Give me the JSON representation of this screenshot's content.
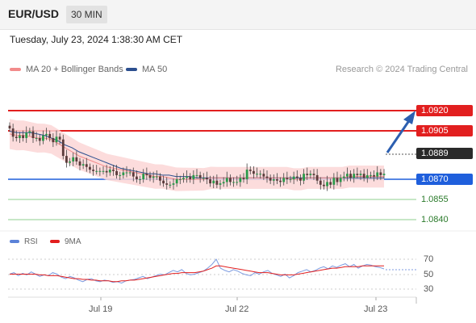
{
  "header": {
    "symbol": "EUR/USD",
    "timeframe": "30 MIN"
  },
  "datetime": "Tuesday, July 23, 2024 1:38:30 AM CET",
  "legend": {
    "ma20_label": "MA 20 + Bollinger Bands",
    "ma50_label": "MA 50",
    "ma20_color": "#f28b8b",
    "ma50_color": "#2c4f8f",
    "credit": "Research © 2024 Trading Central"
  },
  "levels": {
    "r2": "1.0920",
    "r1": "1.0905",
    "current": "1.0889",
    "s1": "1.0870",
    "s2": "1.0855",
    "s3": "1.0840",
    "resistance_color": "#e21f1f",
    "support_color": "#1f5fdc",
    "green_color": "#49a049"
  },
  "rsi": {
    "rsi_label": "RSI",
    "ma_label": "9MA",
    "levels": [
      "70",
      "50",
      "30"
    ],
    "rsi_color": "#5b82d8",
    "ma_color": "#e21f1f"
  },
  "xaxis": {
    "labels": [
      "Jul 19",
      "Jul 22",
      "Jul 23"
    ]
  },
  "chart_data": {
    "type": "candlestick",
    "price": [
      1.0907,
      1.0901,
      1.09,
      1.0902,
      1.09,
      1.0904,
      1.0905,
      1.09,
      1.09,
      1.0898,
      1.0902,
      1.0903,
      1.09,
      1.0897,
      1.0901,
      1.0899,
      1.0887,
      1.0882,
      1.0883,
      1.0886,
      1.0883,
      1.088,
      1.0881,
      1.0879,
      1.0877,
      1.0876,
      1.0876,
      1.0876,
      1.0876,
      1.0875,
      1.0877,
      1.0876,
      1.0873,
      1.0873,
      1.0875,
      1.0875,
      1.0875,
      1.0872,
      1.087,
      1.087,
      1.0874,
      1.0873,
      1.0871,
      1.0872,
      1.0872,
      1.0869,
      1.0867,
      1.0866,
      1.0866,
      1.0867,
      1.087,
      1.087,
      1.0871,
      1.0872,
      1.087,
      1.0873,
      1.0873,
      1.0871,
      1.0871,
      1.087,
      1.0867,
      1.0869,
      1.0866,
      1.0867,
      1.0868,
      1.0871,
      1.0868,
      1.0868,
      1.0868,
      1.0871,
      1.087,
      1.0877,
      1.0876,
      1.0874,
      1.0874,
      1.0874,
      1.0872,
      1.0871,
      1.0869,
      1.087,
      1.0869,
      1.0868,
      1.0871,
      1.087,
      1.087,
      1.0872,
      1.0871,
      1.0869,
      1.0874,
      1.0873,
      1.0874,
      1.0873,
      1.0869,
      1.0866,
      1.0865,
      1.0868,
      1.0866,
      1.0871,
      1.0868,
      1.0871,
      1.0872,
      1.0874,
      1.0871,
      1.0874,
      1.0873,
      1.0874,
      1.0871,
      1.0873,
      1.0873,
      1.0872,
      1.0875,
      1.0873,
      1.0874
    ],
    "ma20": [
      1.0903,
      1.0902,
      1.0902,
      1.0901,
      1.09,
      1.09,
      1.0899,
      1.0896,
      1.0893,
      1.089,
      1.0887,
      1.0885,
      1.0883,
      1.0881,
      1.0879,
      1.0878,
      1.0877,
      1.0876,
      1.0875,
      1.0874,
      1.0873,
      1.0872,
      1.0872,
      1.0871,
      1.087,
      1.087,
      1.087,
      1.087,
      1.087,
      1.0871,
      1.0871,
      1.0871,
      1.0871,
      1.0871,
      1.0871,
      1.0871,
      1.0871,
      1.0871,
      1.0871,
      1.0871,
      1.0871,
      1.087,
      1.087,
      1.0871,
      1.0871,
      1.0871,
      1.0871,
      1.0871,
      1.0871,
      1.0872,
      1.0872,
      1.0872,
      1.0872,
      1.0872,
      1.0872
    ],
    "ma50": [
      1.0905,
      1.0904,
      1.0904,
      1.0904,
      1.0903,
      1.0902,
      1.09,
      1.0898,
      1.0895,
      1.0893,
      1.089,
      1.0888,
      1.0886,
      1.0884,
      1.0882,
      1.088,
      1.0878,
      1.0877,
      1.0876,
      1.0875,
      1.0874,
      1.0874,
      1.0873,
      1.0873,
      1.0872,
      1.0872,
      1.0872,
      1.0871,
      1.0871,
      1.0871,
      1.0871,
      1.0871,
      1.0871,
      1.0871,
      1.0871,
      1.0871,
      1.0871,
      1.0871,
      1.0871,
      1.0871,
      1.0871,
      1.0871,
      1.0871,
      1.0871,
      1.0871,
      1.0871,
      1.0871,
      1.0871,
      1.0871,
      1.0871,
      1.0871,
      1.0871,
      1.0871,
      1.0871,
      1.0871
    ],
    "rsi": [
      50,
      52,
      48,
      51,
      49,
      53,
      50,
      47,
      49,
      48,
      52,
      50,
      46,
      44,
      47,
      45,
      42,
      40,
      43,
      44,
      41,
      40,
      42,
      41,
      39,
      40,
      38,
      41,
      42,
      43,
      45,
      47,
      44,
      46,
      48,
      50,
      49,
      52,
      55,
      53,
      56,
      51,
      49,
      50,
      52,
      54,
      58,
      63,
      70,
      58,
      55,
      53,
      56,
      54,
      51,
      49,
      48,
      52,
      50,
      53,
      55,
      51,
      49,
      47,
      50,
      45,
      48,
      52,
      54,
      56,
      53,
      55,
      58,
      60,
      57,
      61,
      59,
      62,
      64,
      60,
      63,
      58,
      61,
      63,
      62,
      60,
      59,
      57
    ],
    "rsi_ma": [
      50,
      50,
      50,
      50,
      50,
      50,
      50,
      49,
      49,
      48,
      48,
      48,
      47,
      46,
      45,
      44,
      44,
      43,
      43,
      42,
      42,
      41,
      41,
      41,
      40,
      40,
      41,
      41,
      42,
      42,
      43,
      44,
      45,
      46,
      47,
      48,
      49,
      50,
      51,
      51,
      52,
      52,
      52,
      52,
      53,
      54,
      56,
      58,
      61,
      61,
      60,
      59,
      58,
      57,
      56,
      55,
      54,
      53,
      52,
      52,
      52,
      51,
      50,
      49,
      49,
      49,
      49,
      50,
      51,
      52,
      53,
      54,
      55,
      56,
      57,
      58,
      58,
      59,
      60,
      60,
      60,
      60,
      61,
      61,
      61,
      61,
      61,
      61
    ],
    "x_labels": [
      "Jul 19",
      "Jul 22",
      "Jul 23"
    ],
    "price_levels": [
      1.092,
      1.0905,
      1.0889,
      1.087,
      1.0855,
      1.084
    ],
    "rsi_levels": [
      70,
      50,
      30
    ],
    "arrow": "up"
  }
}
